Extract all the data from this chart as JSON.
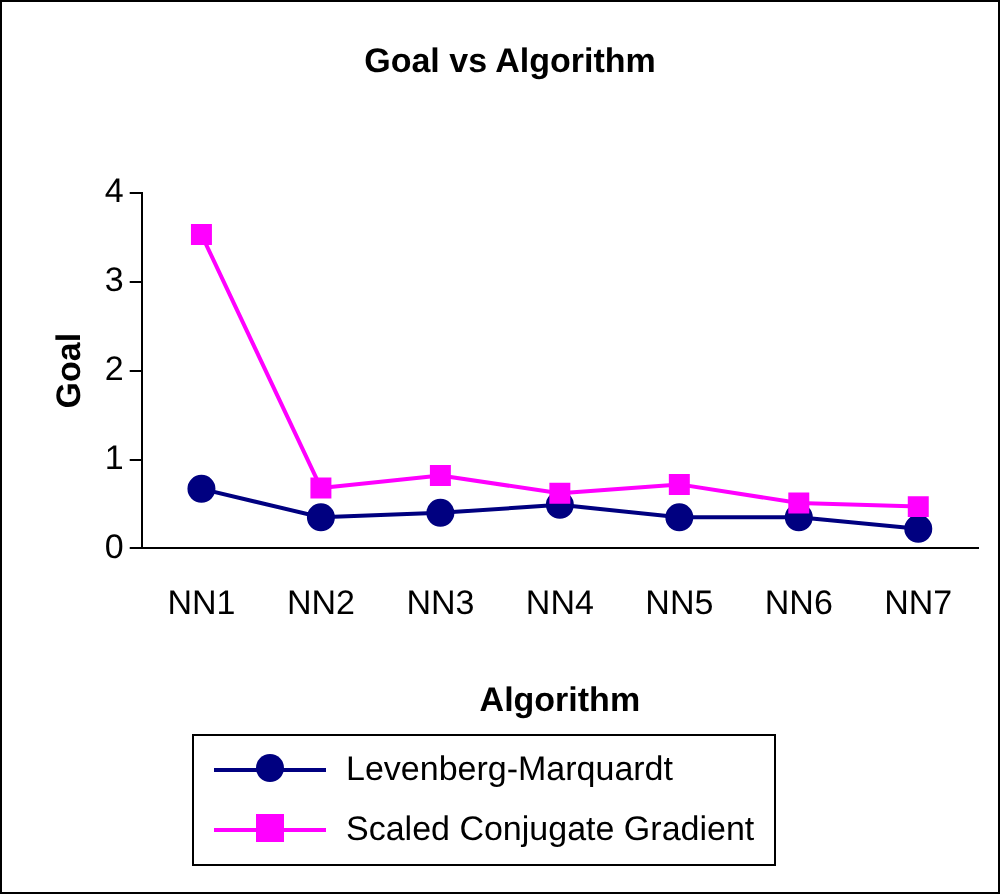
{
  "chart_data": {
    "type": "line",
    "title": "Goal vs Algorithm",
    "xlabel": "Algorithm",
    "ylabel": "Goal",
    "categories": [
      "NN1",
      "NN2",
      "NN3",
      "NN4",
      "NN5",
      "NN6",
      "NN7"
    ],
    "series": [
      {
        "name": "Levenberg-Marquardt",
        "color": "#000080",
        "marker": "circle",
        "values": [
          0.67,
          0.35,
          0.4,
          0.49,
          0.35,
          0.35,
          0.22
        ]
      },
      {
        "name": "Scaled Conjugate Gradient",
        "color": "#ff00ff",
        "marker": "square",
        "values": [
          3.53,
          0.68,
          0.82,
          0.62,
          0.72,
          0.51,
          0.47
        ]
      }
    ],
    "ylim": [
      0,
      4
    ],
    "yticks": [
      0,
      1,
      2,
      3,
      4
    ],
    "grid": false,
    "legend": "bottom",
    "line_style": "solid"
  }
}
